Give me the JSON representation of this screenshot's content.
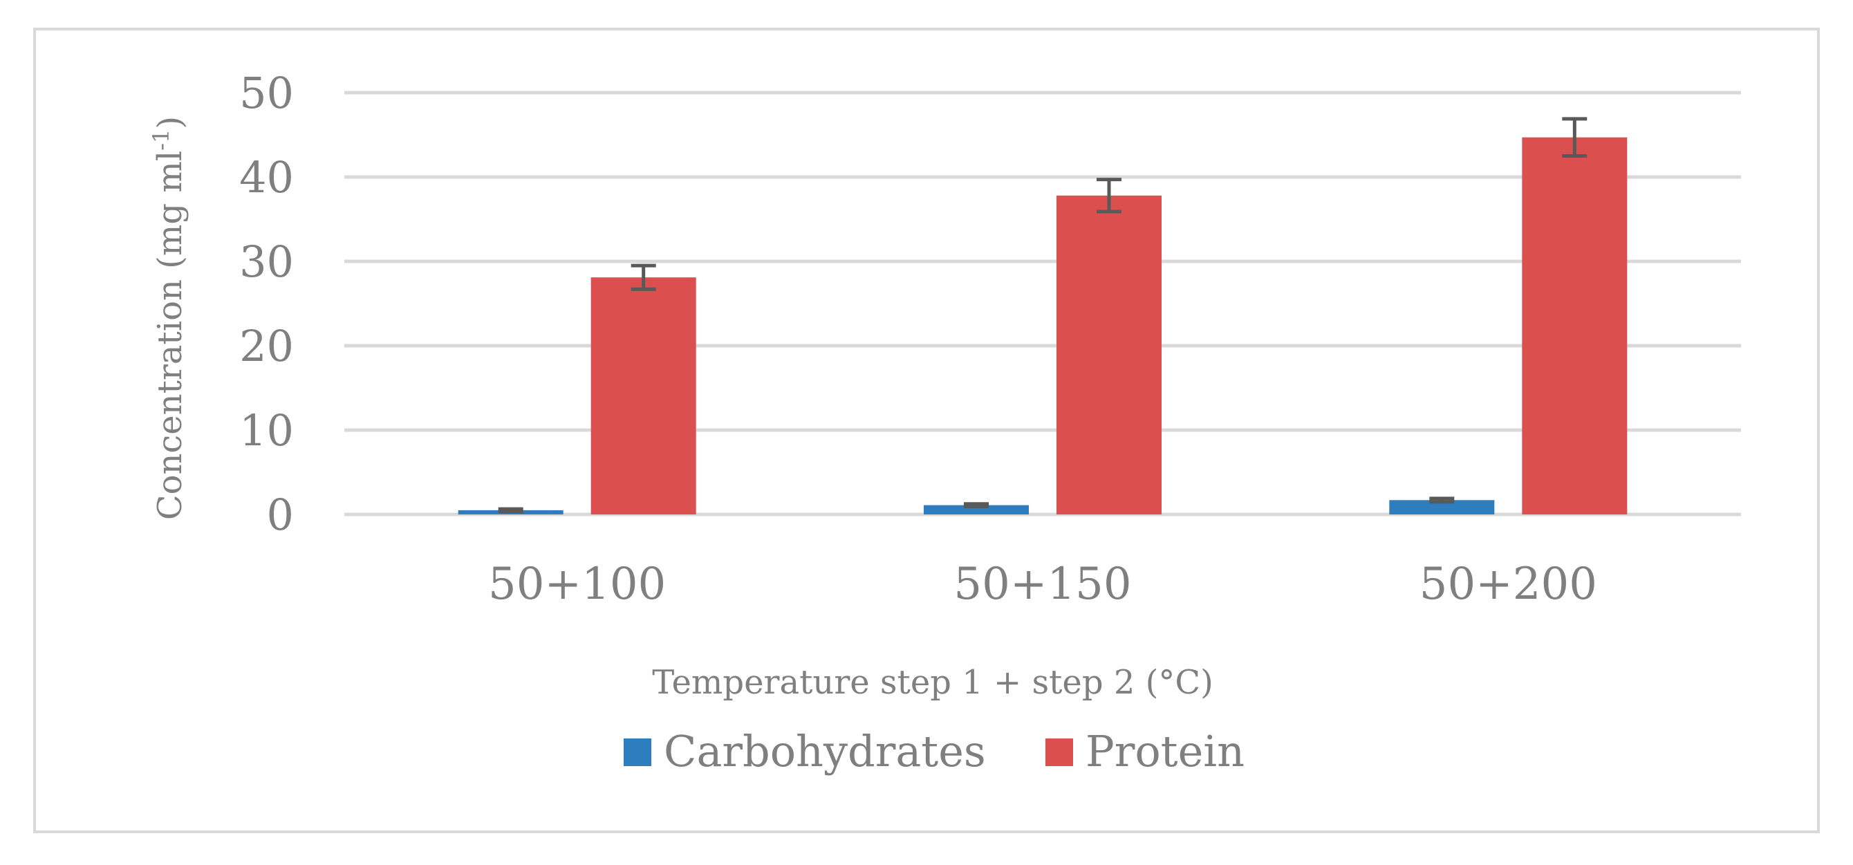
{
  "chart_data": {
    "type": "bar",
    "title": "",
    "xlabel": "Temperature step 1 + step 2 (°C)",
    "ylabel_main": "Concentration (mg ml",
    "ylabel_sup": "-1",
    "ylabel_end": ")",
    "ylim": [
      0,
      50
    ],
    "yticks": [
      "0",
      "10",
      "20",
      "30",
      "40",
      "50"
    ],
    "ytick_values": [
      0,
      10,
      20,
      30,
      40,
      50
    ],
    "grid": true,
    "legend_position": "bottom",
    "categories": [
      "50+100",
      "50+150",
      "50+200"
    ],
    "series": [
      {
        "name": "Carbohydrates",
        "color": "#2e7ebf",
        "values": [
          0.5,
          1.1,
          1.7
        ],
        "errors": [
          0.15,
          0.15,
          0.2
        ]
      },
      {
        "name": "Protein",
        "color": "#dc4f4f",
        "values": [
          28.1,
          37.8,
          44.7
        ],
        "errors": [
          1.4,
          1.9,
          2.2
        ]
      }
    ]
  }
}
